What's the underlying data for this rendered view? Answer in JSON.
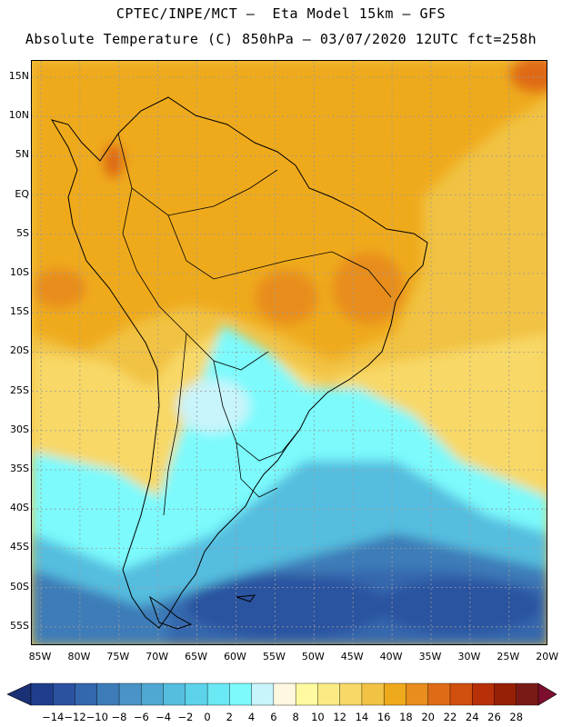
{
  "header": {
    "line1": "CPTEC/INPE/MCT –  Eta Model 15km – GFS",
    "line2": "Absolute Temperature (C) 850hPa – 03/07/2020 12UTC fct=258h"
  },
  "map": {
    "lat_labels": [
      "15N",
      "10N",
      "5N",
      "EQ",
      "5S",
      "10S",
      "15S",
      "20S",
      "25S",
      "30S",
      "35S",
      "40S",
      "45S",
      "50S",
      "55S"
    ],
    "lon_labels": [
      "85W",
      "80W",
      "75W",
      "70W",
      "65W",
      "60W",
      "55W",
      "50W",
      "45W",
      "40W",
      "35W",
      "30W",
      "25W",
      "20W"
    ],
    "lat_range": [
      15,
      -55
    ],
    "lon_range": [
      -85,
      -20
    ]
  },
  "colorbar": {
    "labels": [
      "-14",
      "-12",
      "-10",
      "-8",
      "-6",
      "-4",
      "-2",
      "0",
      "2",
      "4",
      "6",
      "8",
      "10",
      "12",
      "14",
      "16",
      "18",
      "20",
      "22",
      "24",
      "26",
      "28"
    ],
    "colors": [
      "#1f3d8c",
      "#2b52a0",
      "#3467ad",
      "#3d7cb8",
      "#4a93c6",
      "#4fa8d2",
      "#55bddf",
      "#5dd3ea",
      "#6ae8f3",
      "#7cfafc",
      "#c8f4fb",
      "#fff8e0",
      "#fffaa0",
      "#fbeb84",
      "#f8d866",
      "#f1c243",
      "#efaa1c",
      "#e88d1e",
      "#df6b17",
      "#d14f0f",
      "#b73008",
      "#962005",
      "#7a1a16"
    ],
    "under_color": "#1a3175",
    "over_color": "#7d0f2e"
  },
  "icons": [
    "map-icon",
    "colorbar-icon"
  ]
}
